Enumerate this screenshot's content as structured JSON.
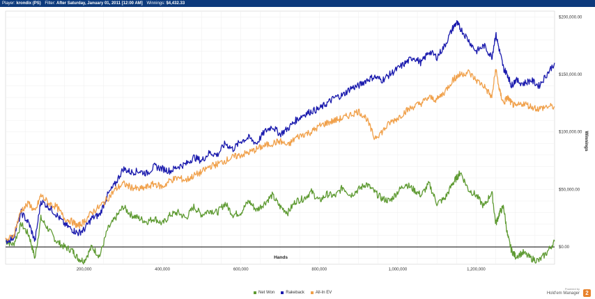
{
  "header": {
    "player_label": "Player:",
    "player_value": "krondix (PS)",
    "filter_label": "Filter:",
    "filter_value": "After Saturday, January 01, 2011 [12:00 AM]",
    "winnings_label": "Winnings:",
    "winnings_value": "$4,432.33"
  },
  "branding": {
    "powered_by": "Powered by",
    "name": "Hold'em Manager",
    "logo_glyph": "2",
    "logo_color": "#e8822c"
  },
  "chart_data": {
    "type": "line",
    "xlabel": "Hands",
    "ylabel": "Winnings",
    "xlim": [
      0,
      1400000
    ],
    "ylim": [
      -15000,
      205000
    ],
    "x_ticks": [
      200000,
      400000,
      600000,
      800000,
      1000000,
      1200000
    ],
    "x_tick_labels": [
      "200,000",
      "400,000",
      "600,000",
      "800,000",
      "1,000,000",
      "1,200,000"
    ],
    "y_ticks": [
      0,
      50000,
      100000,
      150000,
      200000
    ],
    "y_tick_labels": [
      "$0.00",
      "$50,000.00",
      "$100,000.00",
      "$150,000.00",
      "$200,000.00"
    ],
    "grid": true,
    "legend_position": "bottom",
    "zero_line": true,
    "series": [
      {
        "name": "Net Won",
        "color": "#5e9a32",
        "x": [
          0,
          20000,
          40000,
          60000,
          75000,
          90000,
          110000,
          130000,
          150000,
          170000,
          185000,
          200000,
          220000,
          240000,
          260000,
          280000,
          300000,
          320000,
          340000,
          360000,
          380000,
          400000,
          420000,
          440000,
          460000,
          480000,
          500000,
          520000,
          540000,
          560000,
          580000,
          600000,
          620000,
          640000,
          660000,
          680000,
          700000,
          720000,
          740000,
          760000,
          780000,
          800000,
          820000,
          840000,
          860000,
          880000,
          900000,
          920000,
          940000,
          960000,
          980000,
          1000000,
          1020000,
          1040000,
          1060000,
          1080000,
          1100000,
          1120000,
          1140000,
          1150000,
          1160000,
          1180000,
          1200000,
          1220000,
          1240000,
          1250000,
          1260000,
          1270000,
          1280000,
          1290000,
          1300000,
          1320000,
          1340000,
          1360000,
          1380000,
          1400000
        ],
        "values": [
          5000,
          2000,
          20000,
          10000,
          -10000,
          25000,
          15000,
          5000,
          0,
          -3000,
          -10000,
          -12000,
          0,
          -8000,
          15000,
          25000,
          35000,
          28000,
          25000,
          22000,
          25000,
          20000,
          28000,
          30000,
          25000,
          35000,
          28000,
          32000,
          30000,
          38000,
          28000,
          30000,
          40000,
          32000,
          38000,
          45000,
          35000,
          30000,
          40000,
          42000,
          48000,
          40000,
          46000,
          44000,
          52000,
          45000,
          50000,
          55000,
          48000,
          42000,
          40000,
          48000,
          55000,
          50000,
          45000,
          55000,
          38000,
          42000,
          55000,
          60000,
          65000,
          50000,
          45000,
          35000,
          48000,
          20000,
          30000,
          35000,
          10000,
          -3000,
          -8000,
          -5000,
          -10000,
          -12000,
          -5000,
          5000
        ]
      },
      {
        "name": "Rakeback",
        "color": "#1a1aad",
        "x": [
          0,
          20000,
          40000,
          60000,
          75000,
          90000,
          110000,
          130000,
          150000,
          170000,
          185000,
          200000,
          220000,
          240000,
          260000,
          280000,
          300000,
          320000,
          340000,
          360000,
          380000,
          400000,
          420000,
          440000,
          460000,
          480000,
          500000,
          520000,
          540000,
          560000,
          580000,
          600000,
          620000,
          640000,
          660000,
          680000,
          700000,
          720000,
          740000,
          760000,
          780000,
          800000,
          820000,
          840000,
          860000,
          880000,
          900000,
          920000,
          940000,
          960000,
          980000,
          1000000,
          1020000,
          1040000,
          1060000,
          1080000,
          1100000,
          1120000,
          1140000,
          1150000,
          1160000,
          1180000,
          1200000,
          1220000,
          1240000,
          1250000,
          1260000,
          1270000,
          1280000,
          1290000,
          1300000,
          1320000,
          1340000,
          1360000,
          1380000,
          1400000
        ],
        "values": [
          5000,
          8000,
          30000,
          20000,
          5000,
          40000,
          35000,
          28000,
          20000,
          15000,
          12000,
          15000,
          25000,
          28000,
          45000,
          55000,
          68000,
          65000,
          66000,
          64000,
          70000,
          68000,
          66000,
          70000,
          72000,
          78000,
          75000,
          82000,
          80000,
          90000,
          85000,
          92000,
          95000,
          90000,
          100000,
          105000,
          98000,
          103000,
          110000,
          115000,
          118000,
          120000,
          125000,
          130000,
          132000,
          138000,
          140000,
          145000,
          148000,
          145000,
          150000,
          155000,
          160000,
          165000,
          160000,
          170000,
          165000,
          175000,
          190000,
          195000,
          190000,
          180000,
          170000,
          175000,
          165000,
          185000,
          170000,
          155000,
          150000,
          140000,
          145000,
          142000,
          145000,
          140000,
          150000,
          160000
        ]
      },
      {
        "name": "All-In EV",
        "color": "#f0a04a",
        "x": [
          0,
          20000,
          40000,
          60000,
          75000,
          90000,
          110000,
          130000,
          150000,
          170000,
          185000,
          200000,
          220000,
          240000,
          260000,
          280000,
          300000,
          320000,
          340000,
          360000,
          380000,
          400000,
          420000,
          440000,
          460000,
          480000,
          500000,
          520000,
          540000,
          560000,
          580000,
          600000,
          620000,
          640000,
          660000,
          680000,
          700000,
          720000,
          740000,
          760000,
          780000,
          800000,
          820000,
          840000,
          860000,
          880000,
          900000,
          920000,
          940000,
          960000,
          980000,
          1000000,
          1020000,
          1040000,
          1060000,
          1080000,
          1100000,
          1120000,
          1140000,
          1150000,
          1160000,
          1180000,
          1200000,
          1220000,
          1240000,
          1250000,
          1260000,
          1270000,
          1280000,
          1290000,
          1300000,
          1320000,
          1340000,
          1360000,
          1380000,
          1400000
        ],
        "values": [
          5000,
          10000,
          32000,
          38000,
          30000,
          45000,
          38000,
          35000,
          25000,
          22000,
          18000,
          22000,
          30000,
          35000,
          42000,
          50000,
          55000,
          52000,
          50000,
          52000,
          55000,
          52000,
          58000,
          60000,
          58000,
          62000,
          65000,
          70000,
          72000,
          75000,
          78000,
          80000,
          82000,
          85000,
          88000,
          90000,
          92000,
          88000,
          95000,
          98000,
          100000,
          105000,
          108000,
          110000,
          112000,
          115000,
          118000,
          112000,
          95000,
          100000,
          108000,
          112000,
          118000,
          122000,
          125000,
          130000,
          128000,
          135000,
          145000,
          148000,
          150000,
          152000,
          145000,
          140000,
          130000,
          155000,
          135000,
          125000,
          130000,
          125000,
          122000,
          125000,
          122000,
          120000,
          122000,
          122000
        ]
      }
    ]
  }
}
